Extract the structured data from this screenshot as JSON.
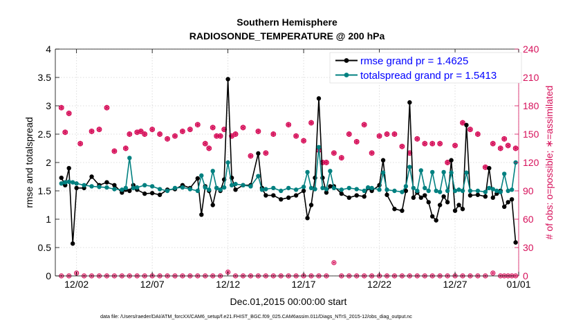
{
  "chart_data": {
    "type": "line",
    "title": "Southern Hemisphere",
    "subtitle": "RADIOSONDE_TEMPERATURE @ 200 hPa",
    "xlabel": "Dec.01,2015 00:00:00 start",
    "ylabel": "rmse and totalspread",
    "ylabel_right": "# of obs: o=possible; ∗=assimilated",
    "footnote": "data file: /Users/raeder/DAI/ATM_forcXX/CAM6_setup/f.e21.FHIST_BGC.f09_025.CAM6assim.011/Diags_NTrS_2015-12/obs_diag_output.nc",
    "xlim": [
      0.6,
      31.2
    ],
    "ylim": [
      0,
      4
    ],
    "ylim_right": [
      0,
      240
    ],
    "x_ticks": [
      2,
      7,
      12,
      17,
      22,
      27,
      32
    ],
    "x_tick_labels": [
      "12/02",
      "12/07",
      "12/12",
      "12/17",
      "12/22",
      "12/27",
      "01/01"
    ],
    "y_ticks": [
      0,
      0.5,
      1,
      1.5,
      2,
      2.5,
      3,
      3.5,
      4
    ],
    "y_tick_labels": [
      "0",
      "0.5",
      "1",
      "1.5",
      "2",
      "2.5",
      "3",
      "3.5",
      "4"
    ],
    "y_ticks_right": [
      0,
      30,
      60,
      90,
      120,
      150,
      180,
      210,
      240
    ],
    "y_tick_labels_right": [
      "0",
      "30",
      "60",
      "90",
      "120",
      "150",
      "180",
      "210",
      "240"
    ],
    "legend_position": "top-right",
    "grid": true,
    "colors": {
      "rmse": "#000000",
      "spread": "#008080",
      "obs": "#d6105a",
      "axis_right": "#d6105a"
    },
    "x": [
      1,
      1.25,
      1.5,
      1.75,
      2,
      2.5,
      3,
      3.5,
      4,
      4.5,
      5,
      5.25,
      5.5,
      5.75,
      6,
      6.5,
      7,
      7.5,
      8,
      8.5,
      9,
      9.5,
      10,
      10.25,
      10.5,
      10.75,
      11,
      11.25,
      11.5,
      11.75,
      12,
      12.25,
      12.5,
      13,
      13.5,
      14,
      14.25,
      14.5,
      15,
      15.5,
      16,
      16.5,
      17,
      17.25,
      17.5,
      17.75,
      18,
      18.25,
      18.5,
      18.75,
      19,
      19.5,
      20,
      20.5,
      21,
      21.25,
      21.5,
      22,
      22.25,
      22.5,
      23,
      23.5,
      23.75,
      24,
      24.25,
      24.5,
      24.75,
      25,
      25.25,
      25.5,
      25.75,
      26,
      26.25,
      26.5,
      26.75,
      27,
      27.25,
      27.5,
      27.75,
      28,
      28.5,
      29,
      29.25,
      29.5,
      29.75,
      30,
      30.25,
      30.5,
      30.75,
      31
    ],
    "series": [
      {
        "name": "rmse grand pr = 1.4625",
        "values": [
          1.73,
          1.6,
          1.9,
          0.57,
          1.55,
          1.55,
          1.75,
          1.6,
          1.65,
          1.6,
          1.47,
          1.52,
          1.5,
          1.6,
          1.52,
          1.45,
          1.46,
          1.43,
          1.52,
          1.53,
          1.6,
          1.55,
          1.72,
          1.08,
          1.58,
          1.5,
          1.25,
          1.55,
          1.5,
          1.7,
          3.47,
          1.73,
          1.52,
          1.6,
          1.6,
          2.16,
          1.55,
          1.42,
          1.42,
          1.35,
          1.38,
          1.42,
          1.5,
          1.02,
          1.25,
          1.73,
          3.13,
          1.73,
          1.47,
          1.58,
          1.58,
          1.45,
          1.38,
          1.42,
          1.4,
          1.55,
          1.5,
          1.6,
          2.04,
          1.43,
          1.18,
          1.15,
          1.5,
          3.06,
          1.38,
          1.47,
          1.38,
          1.42,
          1.3,
          1.05,
          0.98,
          1.25,
          1.4,
          1.3,
          2.04,
          1.15,
          1.25,
          1.18,
          2.66,
          1.42,
          1.43,
          1.4,
          1.9,
          1.38,
          1.45,
          1.5,
          1.22,
          1.3,
          1.35,
          0.59
        ]
      },
      {
        "name": "totalspread grand pr = 1.5413",
        "values": [
          1.63,
          1.65,
          1.66,
          1.65,
          1.63,
          1.6,
          1.58,
          1.57,
          1.56,
          1.53,
          1.52,
          1.55,
          2.08,
          1.55,
          1.56,
          1.6,
          1.58,
          1.53,
          1.5,
          1.55,
          1.56,
          1.53,
          1.5,
          1.77,
          1.56,
          1.52,
          1.85,
          1.55,
          1.52,
          1.56,
          2.0,
          1.6,
          1.62,
          1.6,
          1.58,
          1.76,
          1.52,
          1.53,
          1.55,
          1.5,
          1.55,
          1.52,
          1.57,
          1.83,
          1.55,
          1.53,
          2.27,
          1.55,
          1.53,
          1.85,
          1.55,
          1.52,
          1.55,
          1.53,
          1.5,
          1.56,
          1.55,
          1.52,
          1.82,
          1.52,
          1.5,
          1.48,
          1.58,
          1.92,
          1.55,
          1.5,
          1.86,
          1.55,
          1.5,
          1.83,
          1.5,
          1.48,
          1.83,
          1.5,
          1.82,
          1.5,
          1.52,
          1.5,
          1.82,
          1.5,
          1.5,
          1.48,
          1.55,
          1.53,
          1.5,
          1.48,
          1.8,
          1.5,
          1.52,
          2.0
        ]
      }
    ],
    "obs_possible": [
      178,
      152,
      172,
      140,
      153,
      155,
      178,
      132,
      135,
      150,
      152,
      153,
      150,
      155,
      150,
      145,
      148,
      153,
      155,
      160,
      140,
      135,
      157,
      148,
      148,
      155,
      148,
      150,
      157,
      127,
      153,
      130,
      150,
      160,
      148,
      143,
      162,
      133,
      120,
      120,
      130,
      125,
      150,
      142,
      160,
      130,
      148,
      150,
      150,
      137,
      130,
      145,
      140,
      140,
      140,
      120,
      138,
      162,
      155,
      150,
      115,
      140,
      135,
      145,
      138,
      135
    ],
    "obs_possible_x": [
      1,
      1.25,
      1.5,
      2.25,
      3,
      3.5,
      4,
      4.5,
      5.25,
      5.5,
      6,
      6.25,
      6.5,
      7,
      7.5,
      8,
      8.5,
      9,
      9.5,
      10,
      10.5,
      10.75,
      11,
      11.25,
      11.5,
      11.75,
      12.25,
      12.5,
      13,
      13.5,
      14,
      14.5,
      15,
      16,
      16.5,
      17,
      17.5,
      18,
      18.25,
      18.5,
      19,
      19.5,
      20,
      20.5,
      21,
      21.5,
      22,
      22.5,
      23,
      23.5,
      24,
      24.5,
      25,
      25.5,
      26,
      26.5,
      27,
      27.5,
      28,
      28.5,
      29,
      29.5,
      30,
      30.25,
      30.5,
      31
    ],
    "obs_assimilated": [
      0,
      0,
      3,
      0,
      0,
      0,
      0,
      0,
      0,
      0,
      0,
      0,
      0,
      0,
      0,
      0,
      0,
      0,
      0,
      0,
      0,
      0,
      4,
      0,
      0,
      0,
      0,
      0,
      0,
      0,
      0,
      0,
      0,
      0,
      0,
      0,
      14,
      0,
      0,
      0,
      0,
      0,
      0,
      0,
      0,
      0,
      0,
      0,
      0,
      0,
      0,
      0,
      0,
      0,
      0,
      0,
      0,
      3,
      0,
      0,
      0,
      0,
      0
    ],
    "obs_assimilated_x": [
      1,
      1.5,
      2,
      2.5,
      3,
      3.5,
      4,
      4.5,
      5,
      5.5,
      6,
      6.5,
      7,
      7.5,
      8,
      8.5,
      9,
      9.5,
      10,
      10.5,
      11,
      11.5,
      12,
      12.5,
      13,
      13.5,
      14,
      14.5,
      15,
      15.5,
      16,
      16.5,
      17,
      17.5,
      18,
      18.5,
      19,
      19.5,
      20,
      20.5,
      21,
      21.5,
      22,
      22.5,
      23,
      23.5,
      24,
      24.5,
      25,
      25.5,
      26,
      26.5,
      27,
      27.5,
      28,
      28.5,
      29,
      29.5,
      30,
      30.25,
      30.5,
      30.75,
      31
    ]
  }
}
